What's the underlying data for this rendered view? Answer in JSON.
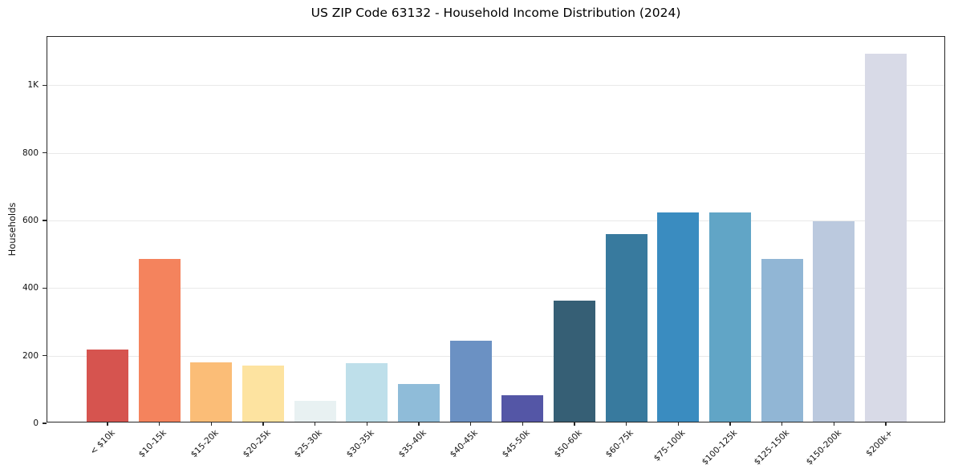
{
  "chart_data": {
    "type": "bar",
    "title": "US ZIP Code 63132 - Household Income Distribution (2024)",
    "xlabel": "",
    "ylabel": "Households",
    "categories": [
      "< $10k",
      "$10-15k",
      "$15-20k",
      "$20-25k",
      "$25-30k",
      "$30-35k",
      "$35-40k",
      "$40-45k",
      "$45-50k",
      "$50-60k",
      "$60-75k",
      "$75-100k",
      "$100-125k",
      "$125-150k",
      "$150-200k",
      "$200k+"
    ],
    "values": [
      214,
      481,
      175,
      166,
      61,
      173,
      112,
      239,
      78,
      357,
      555,
      618,
      620,
      481,
      594,
      1088
    ],
    "bar_colors": [
      "#d6544f",
      "#f4835d",
      "#fbbd77",
      "#fde3a0",
      "#e8f1f2",
      "#bedfea",
      "#8fbcd9",
      "#6b91c3",
      "#5456a6",
      "#365f75",
      "#387a9e",
      "#3a8cc0",
      "#61a5c6",
      "#91b6d5",
      "#bbc9de",
      "#d8dae7"
    ],
    "ylim": [
      0,
      1143
    ],
    "yticks": [
      {
        "value": 0,
        "label": "0"
      },
      {
        "value": 200,
        "label": "200"
      },
      {
        "value": 400,
        "label": "400"
      },
      {
        "value": 600,
        "label": "600"
      },
      {
        "value": 800,
        "label": "800"
      },
      {
        "value": 1000,
        "label": "1K"
      }
    ],
    "grid": "horizontal",
    "legend": "none",
    "axis_color": "#262626",
    "gridline_color": "#e9e9e9",
    "background": "#ffffff"
  }
}
